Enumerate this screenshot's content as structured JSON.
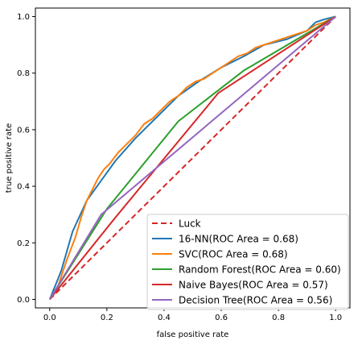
{
  "chart_data": {
    "type": "line",
    "title": "",
    "xlabel": "false positive rate",
    "ylabel": "true positive rate",
    "xlim": [
      -0.05,
      1.05
    ],
    "ylim": [
      -0.03,
      1.03
    ],
    "xticks": [
      0.0,
      0.2,
      0.4,
      0.6,
      0.8,
      1.0
    ],
    "yticks": [
      0.0,
      0.2,
      0.4,
      0.6,
      0.8,
      1.0
    ],
    "xtick_labels": [
      "0.0",
      "0.2",
      "0.4",
      "0.6",
      "0.8",
      "1.0"
    ],
    "ytick_labels": [
      "0.0",
      "0.2",
      "0.4",
      "0.6",
      "0.8",
      "1.0"
    ],
    "grid": false,
    "legend_position": "bottom-right",
    "series": [
      {
        "name": "Luck",
        "color": "#d62728",
        "dashed": true,
        "x": [
          0,
          1
        ],
        "y": [
          0,
          1
        ]
      },
      {
        "name": "16-NN(ROC Area = 0.68)",
        "color": "#1f77b4",
        "dashed": false,
        "x": [
          0,
          0.04,
          0.08,
          0.13,
          0.18,
          0.23,
          0.3,
          0.38,
          0.45,
          0.52,
          0.6,
          0.68,
          0.75,
          0.83,
          0.9,
          0.93,
          0.96,
          1.0
        ],
        "y": [
          0,
          0.1,
          0.24,
          0.35,
          0.42,
          0.49,
          0.57,
          0.65,
          0.72,
          0.77,
          0.82,
          0.86,
          0.9,
          0.92,
          0.95,
          0.98,
          0.99,
          1.0
        ]
      },
      {
        "name": "SVC(ROC Area = 0.68)",
        "color": "#ff7f0e",
        "dashed": false,
        "x": [
          0,
          0.03,
          0.06,
          0.09,
          0.11,
          0.13,
          0.15,
          0.17,
          0.19,
          0.21,
          0.24,
          0.27,
          0.3,
          0.33,
          0.36,
          0.39,
          0.42,
          0.45,
          0.48,
          0.51,
          0.54,
          0.57,
          0.6,
          0.63,
          0.66,
          0.69,
          0.72,
          0.75,
          0.78,
          0.81,
          0.84,
          0.87,
          0.9,
          0.93,
          0.96,
          1.0
        ],
        "y": [
          0,
          0.05,
          0.14,
          0.22,
          0.29,
          0.35,
          0.39,
          0.43,
          0.46,
          0.48,
          0.52,
          0.55,
          0.58,
          0.62,
          0.64,
          0.67,
          0.7,
          0.72,
          0.75,
          0.77,
          0.78,
          0.8,
          0.82,
          0.84,
          0.86,
          0.87,
          0.89,
          0.9,
          0.91,
          0.92,
          0.93,
          0.94,
          0.95,
          0.97,
          0.98,
          1.0
        ]
      },
      {
        "name": "Random Forest(ROC Area = 0.60)",
        "color": "#2ca02c",
        "dashed": false,
        "x": [
          0,
          0.2,
          0.45,
          0.68,
          1.0
        ],
        "y": [
          0,
          0.32,
          0.63,
          0.81,
          1.0
        ]
      },
      {
        "name": "Naive Bayes(ROC Area = 0.57)",
        "color": "#d62728",
        "dashed": false,
        "x": [
          0,
          0.23,
          0.59,
          1.0
        ],
        "y": [
          0,
          0.29,
          0.73,
          1.0
        ]
      },
      {
        "name": "Decision Tree(ROC Area = 0.56)",
        "color": "#9467bd",
        "dashed": false,
        "x": [
          0,
          0.18,
          1.0
        ],
        "y": [
          0,
          0.3,
          1.0
        ]
      }
    ]
  }
}
